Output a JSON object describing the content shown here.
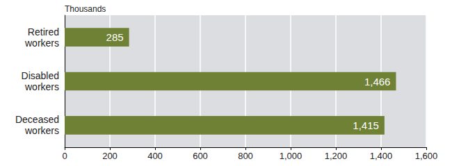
{
  "chart_data": {
    "type": "bar",
    "orientation": "horizontal",
    "xlabel": "Thousands",
    "categories": [
      "Retired workers",
      "Disabled workers",
      "Deceased workers"
    ],
    "values": [
      285,
      1466,
      1415
    ],
    "value_labels": [
      "285",
      "1,466",
      "1,415"
    ],
    "data_labels": true,
    "color": "#6f8135",
    "xlim": [
      0,
      1600
    ],
    "xticks": [
      0,
      200,
      400,
      600,
      800,
      {
        "value": 1000,
        "label": "1,000"
      },
      {
        "value": 1200,
        "label": "1,200"
      },
      {
        "value": 1400,
        "label": "1,400"
      },
      {
        "value": 1600,
        "label": "1,600"
      }
    ],
    "grid": true
  }
}
